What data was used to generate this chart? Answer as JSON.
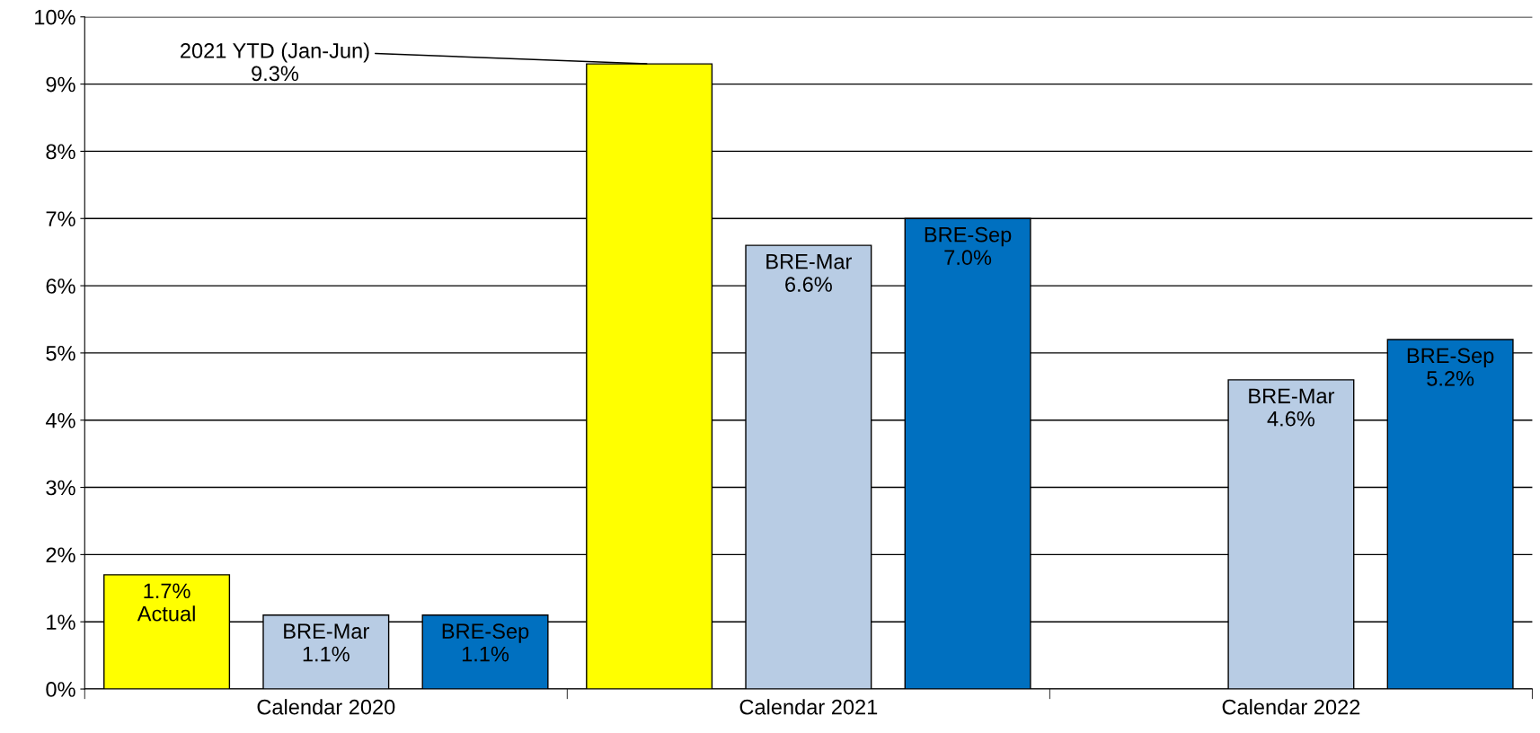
{
  "chart_data": {
    "type": "bar",
    "categories": [
      "Calendar 2020",
      "Calendar 2021",
      "Calendar 2022"
    ],
    "series": [
      {
        "color": "#ffff00",
        "values": [
          1.7,
          9.3,
          null
        ],
        "value_labels": [
          "1.7%\nActual",
          "2021 YTD (Jan-Jun)\n9.3%",
          null
        ]
      },
      {
        "color": "#b8cce4",
        "values": [
          1.1,
          6.6,
          4.6
        ],
        "value_labels": [
          "BRE-Mar\n1.1%",
          "BRE-Mar\n6.6%",
          "BRE-Mar\n4.6%"
        ]
      },
      {
        "color": "#0070c0",
        "values": [
          1.1,
          7.0,
          5.2
        ],
        "value_labels": [
          "BRE-Sep\n1.1%",
          "BRE-Sep\n7.0%",
          "BRE-Sep\n5.2%"
        ]
      }
    ],
    "ylim": [
      0,
      10
    ],
    "yticks": [
      {
        "value": 0,
        "label": "0%"
      },
      {
        "value": 1,
        "label": "1%"
      },
      {
        "value": 2,
        "label": "2%"
      },
      {
        "value": 3,
        "label": "3%"
      },
      {
        "value": 4,
        "label": "4%"
      },
      {
        "value": 5,
        "label": "5%"
      },
      {
        "value": 6,
        "label": "6%"
      },
      {
        "value": 7,
        "label": "7%"
      },
      {
        "value": 8,
        "label": "8%"
      },
      {
        "value": 9,
        "label": "9%"
      },
      {
        "value": 10,
        "label": "10%"
      }
    ],
    "grid": "y",
    "legend": false
  }
}
